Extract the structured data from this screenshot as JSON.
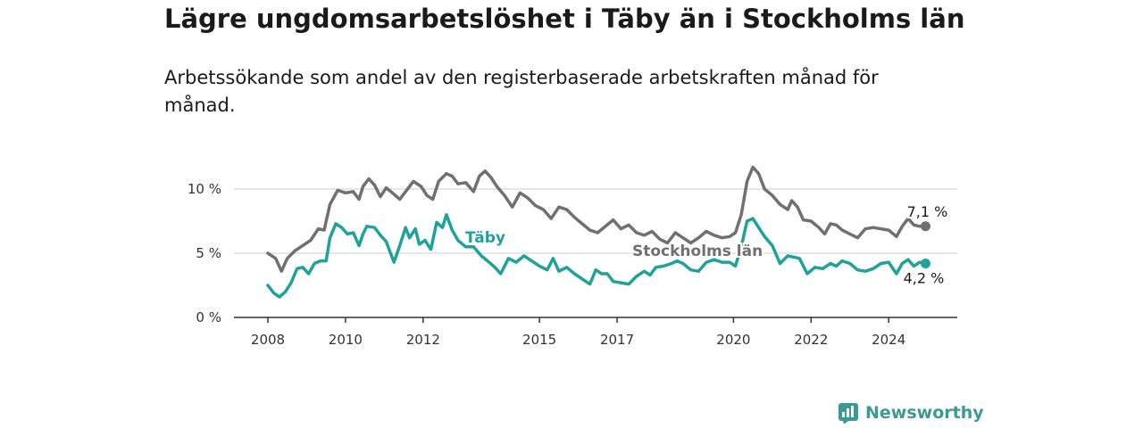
{
  "chart_data": {
    "type": "line",
    "title": "Lägre ungdomsarbetslöshet i Täby än i Stockholms län",
    "subtitle": "Arbetssökande som andel av den registerbaserade arbetskraften månad för månad.",
    "ylim": [
      0,
      12
    ],
    "y_ticks": [
      {
        "value": 0,
        "label": "0 %"
      },
      {
        "value": 5,
        "label": "5 %"
      },
      {
        "value": 10,
        "label": "10 %"
      }
    ],
    "x_ticks": [
      {
        "value": 2008,
        "label": "2008"
      },
      {
        "value": 2010,
        "label": "2010"
      },
      {
        "value": 2012,
        "label": "2012"
      },
      {
        "value": 2015,
        "label": "2015"
      },
      {
        "value": 2017,
        "label": "2017"
      },
      {
        "value": 2020,
        "label": "2020"
      },
      {
        "value": 2022,
        "label": "2022"
      },
      {
        "value": 2024,
        "label": "2024"
      }
    ],
    "grid": true,
    "series": [
      {
        "name": "Stockholms län",
        "color": "#707070",
        "end_label": "7,1 %",
        "points": [
          [
            2008.0,
            5.0
          ],
          [
            2008.2,
            4.6
          ],
          [
            2008.35,
            3.6
          ],
          [
            2008.5,
            4.6
          ],
          [
            2008.7,
            5.2
          ],
          [
            2008.9,
            5.6
          ],
          [
            2009.1,
            6.0
          ],
          [
            2009.3,
            6.9
          ],
          [
            2009.45,
            6.8
          ],
          [
            2009.6,
            8.8
          ],
          [
            2009.8,
            9.9
          ],
          [
            2010.0,
            9.7
          ],
          [
            2010.2,
            9.8
          ],
          [
            2010.35,
            9.2
          ],
          [
            2010.45,
            10.2
          ],
          [
            2010.6,
            10.8
          ],
          [
            2010.75,
            10.3
          ],
          [
            2010.9,
            9.4
          ],
          [
            2011.05,
            10.1
          ],
          [
            2011.25,
            9.6
          ],
          [
            2011.4,
            9.2
          ],
          [
            2011.55,
            9.8
          ],
          [
            2011.75,
            10.6
          ],
          [
            2011.95,
            10.2
          ],
          [
            2012.1,
            9.5
          ],
          [
            2012.25,
            9.2
          ],
          [
            2012.4,
            10.6
          ],
          [
            2012.6,
            11.2
          ],
          [
            2012.75,
            11.0
          ],
          [
            2012.9,
            10.4
          ],
          [
            2013.1,
            10.5
          ],
          [
            2013.3,
            9.8
          ],
          [
            2013.45,
            11.0
          ],
          [
            2013.6,
            11.4
          ],
          [
            2013.75,
            10.9
          ],
          [
            2013.9,
            10.2
          ],
          [
            2014.1,
            9.5
          ],
          [
            2014.3,
            8.6
          ],
          [
            2014.5,
            9.7
          ],
          [
            2014.7,
            9.3
          ],
          [
            2014.9,
            8.7
          ],
          [
            2015.1,
            8.4
          ],
          [
            2015.3,
            7.7
          ],
          [
            2015.5,
            8.6
          ],
          [
            2015.7,
            8.4
          ],
          [
            2015.9,
            7.8
          ],
          [
            2016.1,
            7.3
          ],
          [
            2016.3,
            6.8
          ],
          [
            2016.5,
            6.6
          ],
          [
            2016.7,
            7.1
          ],
          [
            2016.9,
            7.6
          ],
          [
            2017.1,
            6.9
          ],
          [
            2017.3,
            7.2
          ],
          [
            2017.5,
            6.6
          ],
          [
            2017.7,
            6.4
          ],
          [
            2017.9,
            6.7
          ],
          [
            2018.1,
            6.1
          ],
          [
            2018.3,
            5.8
          ],
          [
            2018.5,
            6.6
          ],
          [
            2018.7,
            6.2
          ],
          [
            2018.9,
            5.8
          ],
          [
            2019.1,
            6.2
          ],
          [
            2019.3,
            6.7
          ],
          [
            2019.5,
            6.4
          ],
          [
            2019.7,
            6.2
          ],
          [
            2019.9,
            6.3
          ],
          [
            2020.05,
            6.6
          ],
          [
            2020.2,
            8.0
          ],
          [
            2020.35,
            10.6
          ],
          [
            2020.5,
            11.7
          ],
          [
            2020.65,
            11.2
          ],
          [
            2020.8,
            10.0
          ],
          [
            2021.0,
            9.5
          ],
          [
            2021.2,
            8.8
          ],
          [
            2021.4,
            8.4
          ],
          [
            2021.5,
            9.1
          ],
          [
            2021.65,
            8.6
          ],
          [
            2021.8,
            7.6
          ],
          [
            2022.0,
            7.5
          ],
          [
            2022.2,
            7.0
          ],
          [
            2022.35,
            6.5
          ],
          [
            2022.5,
            7.3
          ],
          [
            2022.65,
            7.2
          ],
          [
            2022.8,
            6.8
          ],
          [
            2023.0,
            6.5
          ],
          [
            2023.2,
            6.2
          ],
          [
            2023.4,
            6.9
          ],
          [
            2023.6,
            7.0
          ],
          [
            2023.8,
            6.9
          ],
          [
            2024.0,
            6.8
          ],
          [
            2024.2,
            6.3
          ],
          [
            2024.35,
            7.1
          ],
          [
            2024.5,
            7.7
          ],
          [
            2024.65,
            7.2
          ],
          [
            2024.8,
            7.1
          ],
          [
            2024.95,
            7.1
          ]
        ]
      },
      {
        "name": "Täby",
        "color": "#1fa399",
        "end_label": "4,2 %",
        "points": [
          [
            2008.0,
            2.5
          ],
          [
            2008.15,
            1.9
          ],
          [
            2008.3,
            1.6
          ],
          [
            2008.45,
            2.0
          ],
          [
            2008.6,
            2.7
          ],
          [
            2008.75,
            3.8
          ],
          [
            2008.9,
            3.9
          ],
          [
            2009.05,
            3.4
          ],
          [
            2009.2,
            4.2
          ],
          [
            2009.35,
            4.4
          ],
          [
            2009.5,
            4.4
          ],
          [
            2009.6,
            6.2
          ],
          [
            2009.75,
            7.3
          ],
          [
            2009.9,
            7.0
          ],
          [
            2010.05,
            6.5
          ],
          [
            2010.2,
            6.6
          ],
          [
            2010.35,
            5.6
          ],
          [
            2010.45,
            6.5
          ],
          [
            2010.55,
            7.1
          ],
          [
            2010.75,
            7.0
          ],
          [
            2010.9,
            6.4
          ],
          [
            2011.05,
            5.9
          ],
          [
            2011.25,
            4.3
          ],
          [
            2011.4,
            5.6
          ],
          [
            2011.55,
            7.0
          ],
          [
            2011.65,
            6.2
          ],
          [
            2011.8,
            6.9
          ],
          [
            2011.9,
            5.7
          ],
          [
            2012.05,
            6.0
          ],
          [
            2012.2,
            5.3
          ],
          [
            2012.35,
            7.4
          ],
          [
            2012.5,
            7.0
          ],
          [
            2012.6,
            8.0
          ],
          [
            2012.75,
            6.8
          ],
          [
            2012.9,
            6.0
          ],
          [
            2013.1,
            5.5
          ],
          [
            2013.3,
            5.5
          ],
          [
            2013.5,
            4.8
          ],
          [
            2013.7,
            4.3
          ],
          [
            2013.85,
            3.9
          ],
          [
            2014.0,
            3.4
          ],
          [
            2014.2,
            4.6
          ],
          [
            2014.4,
            4.3
          ],
          [
            2014.6,
            4.8
          ],
          [
            2014.8,
            4.4
          ],
          [
            2015.0,
            4.0
          ],
          [
            2015.2,
            3.7
          ],
          [
            2015.35,
            4.6
          ],
          [
            2015.5,
            3.6
          ],
          [
            2015.7,
            3.9
          ],
          [
            2015.9,
            3.4
          ],
          [
            2016.1,
            3.0
          ],
          [
            2016.3,
            2.6
          ],
          [
            2016.45,
            3.7
          ],
          [
            2016.6,
            3.4
          ],
          [
            2016.75,
            3.4
          ],
          [
            2016.9,
            2.8
          ],
          [
            2017.1,
            2.7
          ],
          [
            2017.3,
            2.6
          ],
          [
            2017.5,
            3.2
          ],
          [
            2017.7,
            3.6
          ],
          [
            2017.85,
            3.3
          ],
          [
            2018.0,
            3.9
          ],
          [
            2018.2,
            4.0
          ],
          [
            2018.4,
            4.2
          ],
          [
            2018.55,
            4.4
          ],
          [
            2018.7,
            4.2
          ],
          [
            2018.9,
            3.7
          ],
          [
            2019.1,
            3.6
          ],
          [
            2019.3,
            4.3
          ],
          [
            2019.5,
            4.5
          ],
          [
            2019.7,
            4.3
          ],
          [
            2019.9,
            4.3
          ],
          [
            2020.05,
            4.0
          ],
          [
            2020.2,
            5.5
          ],
          [
            2020.35,
            7.5
          ],
          [
            2020.5,
            7.7
          ],
          [
            2020.65,
            7.0
          ],
          [
            2020.8,
            6.3
          ],
          [
            2021.0,
            5.6
          ],
          [
            2021.2,
            4.2
          ],
          [
            2021.4,
            4.8
          ],
          [
            2021.55,
            4.7
          ],
          [
            2021.7,
            4.6
          ],
          [
            2021.9,
            3.4
          ],
          [
            2022.1,
            3.9
          ],
          [
            2022.3,
            3.8
          ],
          [
            2022.5,
            4.2
          ],
          [
            2022.65,
            4.0
          ],
          [
            2022.8,
            4.4
          ],
          [
            2023.0,
            4.2
          ],
          [
            2023.2,
            3.7
          ],
          [
            2023.4,
            3.6
          ],
          [
            2023.6,
            3.8
          ],
          [
            2023.8,
            4.2
          ],
          [
            2024.0,
            4.3
          ],
          [
            2024.2,
            3.4
          ],
          [
            2024.35,
            4.2
          ],
          [
            2024.5,
            4.5
          ],
          [
            2024.65,
            4.0
          ],
          [
            2024.8,
            4.3
          ],
          [
            2024.95,
            4.2
          ]
        ]
      }
    ]
  },
  "brand": {
    "name": "Newsworthy",
    "color": "#3b9a91"
  }
}
